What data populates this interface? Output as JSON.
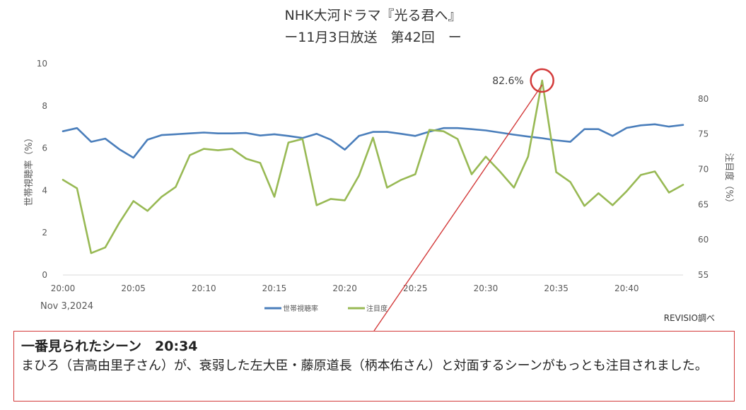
{
  "title": {
    "line1": "NHK大河ドラマ『光る君へ』",
    "line2": "ー11月3日放送　第42回　ー"
  },
  "date_label": "Nov 3,2024",
  "source_label": "REVISIO調べ",
  "peak_label": "82.6%",
  "callout": {
    "heading": "一番見られたシーン　20:34",
    "body": "まひろ（吉高由里子さん）が、衰弱した左大臣・藤原道長（柄本佑さん）と対面するシーンがもっとも注目されました。"
  },
  "colors": {
    "series_household": "#4a7ebb",
    "series_attention": "#98b954",
    "highlight": "#d33a3a",
    "axis": "#d9d9d9",
    "tick_text": "#595959"
  },
  "chart_data": {
    "type": "line",
    "x": [
      "20:00",
      "20:01",
      "20:02",
      "20:03",
      "20:04",
      "20:05",
      "20:06",
      "20:07",
      "20:08",
      "20:09",
      "20:10",
      "20:11",
      "20:12",
      "20:13",
      "20:14",
      "20:15",
      "20:16",
      "20:17",
      "20:18",
      "20:19",
      "20:20",
      "20:21",
      "20:22",
      "20:23",
      "20:24",
      "20:25",
      "20:26",
      "20:27",
      "20:28",
      "20:29",
      "20:30",
      "20:31",
      "20:32",
      "20:33",
      "20:34",
      "20:35",
      "20:36",
      "20:37",
      "20:38",
      "20:39",
      "20:40",
      "20:41",
      "20:42",
      "20:43",
      "20:44"
    ],
    "x_tick_labels": [
      "20:00",
      "20:05",
      "20:10",
      "20:15",
      "20:20",
      "20:25",
      "20:30",
      "20:35",
      "20:40"
    ],
    "y_left": {
      "label": "世帯視聴率（%）",
      "range": [
        0,
        10
      ],
      "ticks": [
        "0",
        "2",
        "4",
        "6",
        "8",
        "10"
      ]
    },
    "y_right": {
      "label": "注目度（%）",
      "range": [
        55,
        85
      ],
      "ticks": [
        "55",
        "60",
        "65",
        "70",
        "75",
        "80"
      ]
    },
    "grid": false,
    "legend_position": "bottom",
    "series": [
      {
        "name": "世帯視聴率",
        "axis": "left",
        "values": [
          6.8,
          6.95,
          6.3,
          6.45,
          5.95,
          5.55,
          6.4,
          6.62,
          6.66,
          6.7,
          6.74,
          6.7,
          6.7,
          6.72,
          6.6,
          6.66,
          6.58,
          6.48,
          6.68,
          6.4,
          5.93,
          6.58,
          6.77,
          6.77,
          6.68,
          6.58,
          6.78,
          6.95,
          6.95,
          6.9,
          6.84,
          6.74,
          6.64,
          6.55,
          6.47,
          6.37,
          6.3,
          6.9,
          6.9,
          6.58,
          6.96,
          7.08,
          7.13,
          7.02,
          7.1
        ]
      },
      {
        "name": "注目度",
        "axis": "right",
        "values": [
          68.5,
          67.3,
          58.1,
          58.9,
          62.4,
          65.5,
          64.1,
          66.1,
          67.5,
          72.0,
          72.9,
          72.7,
          72.9,
          71.5,
          70.9,
          66.1,
          73.8,
          74.3,
          64.9,
          65.8,
          65.6,
          69.1,
          74.5,
          67.4,
          68.5,
          69.3,
          75.6,
          75.4,
          74.3,
          69.3,
          71.8,
          69.7,
          67.4,
          71.8,
          82.6,
          69.6,
          68.2,
          64.8,
          66.6,
          64.9,
          66.9,
          69.2,
          69.7,
          66.7,
          67.8
        ]
      }
    ],
    "annotation": {
      "x": "20:34",
      "text": "82.6%"
    }
  }
}
